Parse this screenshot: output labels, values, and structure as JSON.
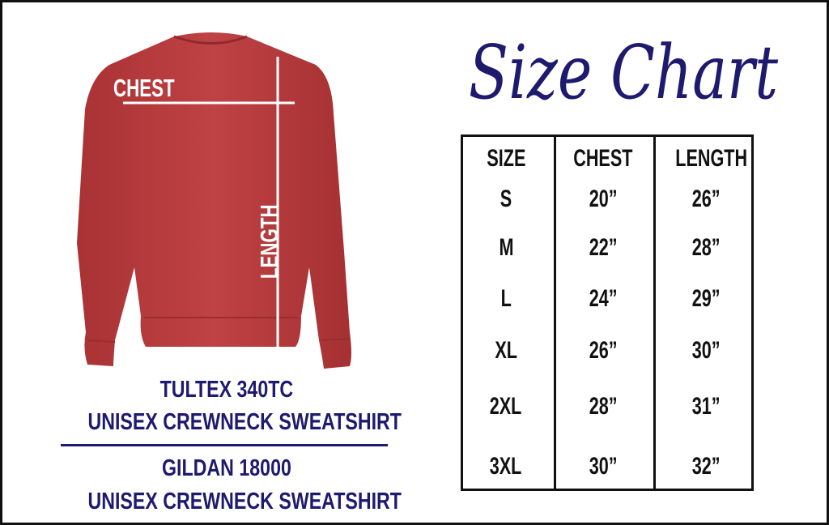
{
  "title": "Size Chart",
  "colors": {
    "title": "#1e1a6e",
    "garment": "#b53a3b",
    "text": "#111111"
  },
  "diagram": {
    "chest_label": "CHEST",
    "length_label": "LENGTH"
  },
  "products": [
    {
      "line1": "TULTEX 340TC",
      "line2": "UNISEX CREWNECK SWEATSHIRT"
    },
    {
      "line1": "GILDAN 18000",
      "line2": "UNISEX CREWNECK SWEATSHIRT"
    }
  ],
  "table": {
    "headers": [
      "SIZE",
      "CHEST",
      "LENGTH"
    ],
    "rows": [
      [
        "S",
        "20”",
        "26”"
      ],
      [
        "M",
        "22”",
        "28”"
      ],
      [
        "L",
        "24”",
        "29”"
      ],
      [
        "XL",
        "26”",
        "30”"
      ],
      [
        "2XL",
        "28”",
        "31”"
      ],
      [
        "3XL",
        "30”",
        "32”"
      ]
    ]
  }
}
